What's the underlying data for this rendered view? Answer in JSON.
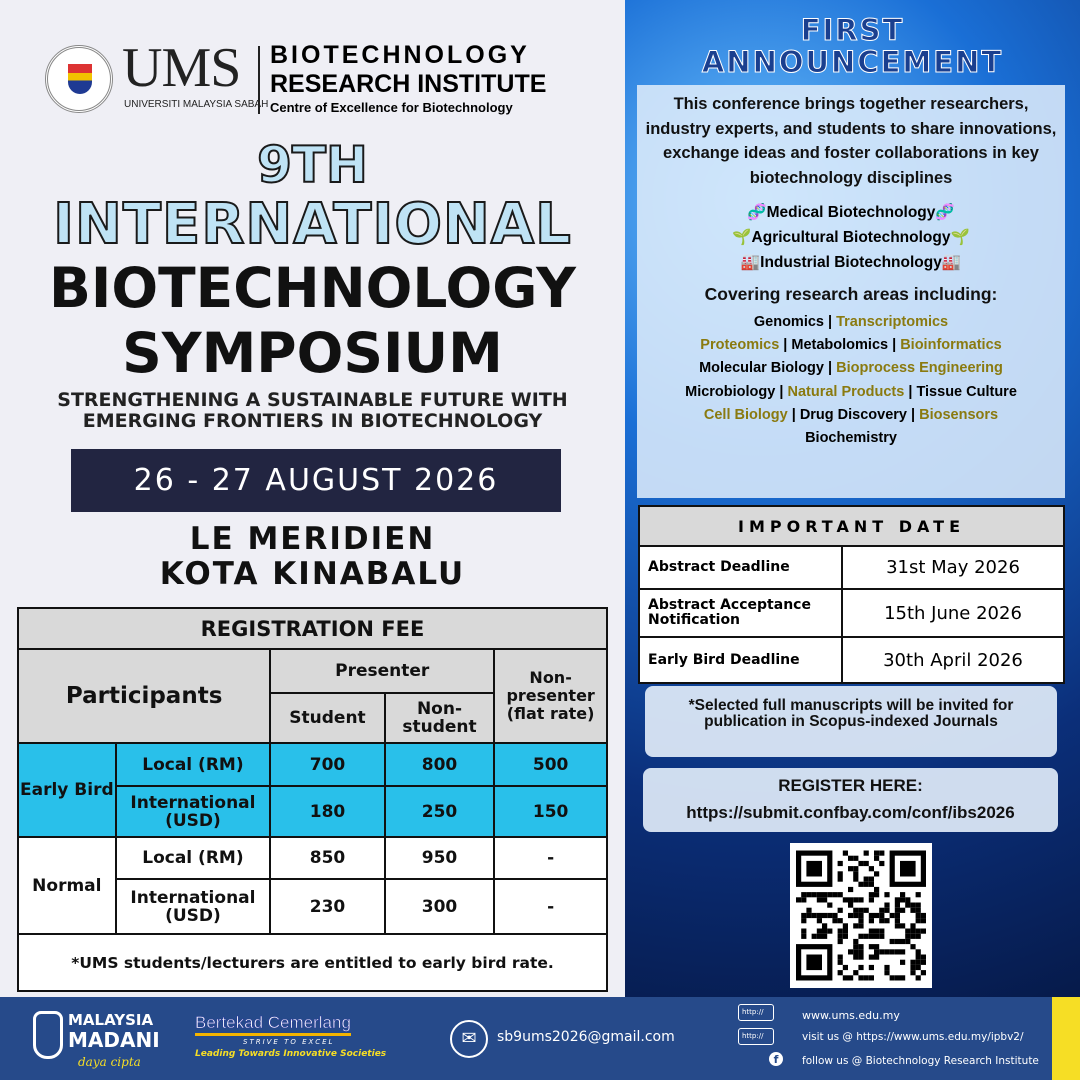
{
  "header": {
    "univ": "UMS",
    "univ_full": "UNIVERSITI MALAYSIA SABAH",
    "inst_line1": "BIOTECHNOLOGY",
    "inst_line2": "RESEARCH INSTITUTE",
    "inst_line3": "Centre of Excellence for Biotechnology"
  },
  "title": {
    "edition": "9TH",
    "line1": "INTERNATIONAL",
    "line2": "BIOTECHNOLOGY",
    "line3": "SYMPOSIUM",
    "theme1": "STRENGTHENING A SUSTAINABLE FUTURE WITH",
    "theme2": "EMERGING FRONTIERS IN BIOTECHNOLOGY",
    "date": "26 - 27 AUGUST 2026",
    "venue1": "LE MERIDIEN",
    "venue2": "KOTA KINABALU"
  },
  "fee": {
    "title": "REGISTRATION FEE",
    "participants": "Participants",
    "presenter": "Presenter",
    "student": "Student",
    "non_student": "Non-student",
    "non_presenter": "Non-presenter (flat rate)",
    "rows": [
      {
        "group": "Early Bird",
        "type": "Local (RM)",
        "student": "700",
        "non_student": "800",
        "non_presenter": "500"
      },
      {
        "group": "Early Bird",
        "type": "International (USD)",
        "student": "180",
        "non_student": "250",
        "non_presenter": "150"
      },
      {
        "group": "Normal",
        "type": "Local (RM)",
        "student": "850",
        "non_student": "950",
        "non_presenter": "-"
      },
      {
        "group": "Normal",
        "type": "International (USD)",
        "student": "230",
        "non_student": "300",
        "non_presenter": "-"
      }
    ],
    "note": "*UMS students/lecturers are entitled to early bird rate."
  },
  "announcement": {
    "title1": "FIRST",
    "title2": "ANNOUNCEMENT",
    "intro": "This conference brings together researchers, industry experts, and students to share innovations, exchange ideas and foster collaborations in key biotechnology disciplines",
    "disciplines": [
      "🧬Medical Biotechnology🧬",
      "🌱Agricultural Biotechnology🌱",
      "🏭Industrial Biotechnology🏭"
    ],
    "covering": "Covering research areas including:",
    "areas": [
      [
        "Genomics",
        "Transcriptomics"
      ],
      [
        "Proteomics",
        "Metabolomics",
        "Bioinformatics"
      ],
      [
        "Molecular Biology",
        "Bioprocess Engineering"
      ],
      [
        "Microbiology",
        "Natural Products",
        "Tissue Culture"
      ],
      [
        "Cell Biology",
        "Drug Discovery",
        "Biosensors"
      ],
      [
        "Biochemistry"
      ]
    ]
  },
  "important": {
    "title": "IMPORTANT DATE",
    "rows": [
      {
        "label": "Abstract Deadline",
        "value": "31st May 2026"
      },
      {
        "label": "Abstract Acceptance Notification",
        "value": "15th June 2026"
      },
      {
        "label": "Early Bird Deadline",
        "value": "30th April 2026"
      }
    ]
  },
  "publication_note": "*Selected full manuscripts will be invited for publication in Scopus-indexed Journals",
  "register": {
    "label": "REGISTER HERE:",
    "url": "https://submit.confbay.com/conf/ibs2026"
  },
  "footer": {
    "madani1": "MALAYSIA",
    "madani2": "MADANI",
    "madani_tag": "daya cipta",
    "bertekad": "Bertekad Cemerlang",
    "strive": "STRIVE TO EXCEL",
    "leading": "Leading Towards Innovative Societies",
    "email": "sb9ums2026@gmail.com",
    "http": "http://",
    "web": "www.ums.edu.my",
    "visit": "visit us @ https://www.ums.edu.my/ipbv2/",
    "follow": "follow us @ Biotechnology Research Institute"
  },
  "colors": {
    "table_blue": "#29c0ea",
    "date_box": "#222541",
    "footer": "#264a8a",
    "accent_yellow": "#f6de25",
    "olive_text": "#8a7a10"
  }
}
